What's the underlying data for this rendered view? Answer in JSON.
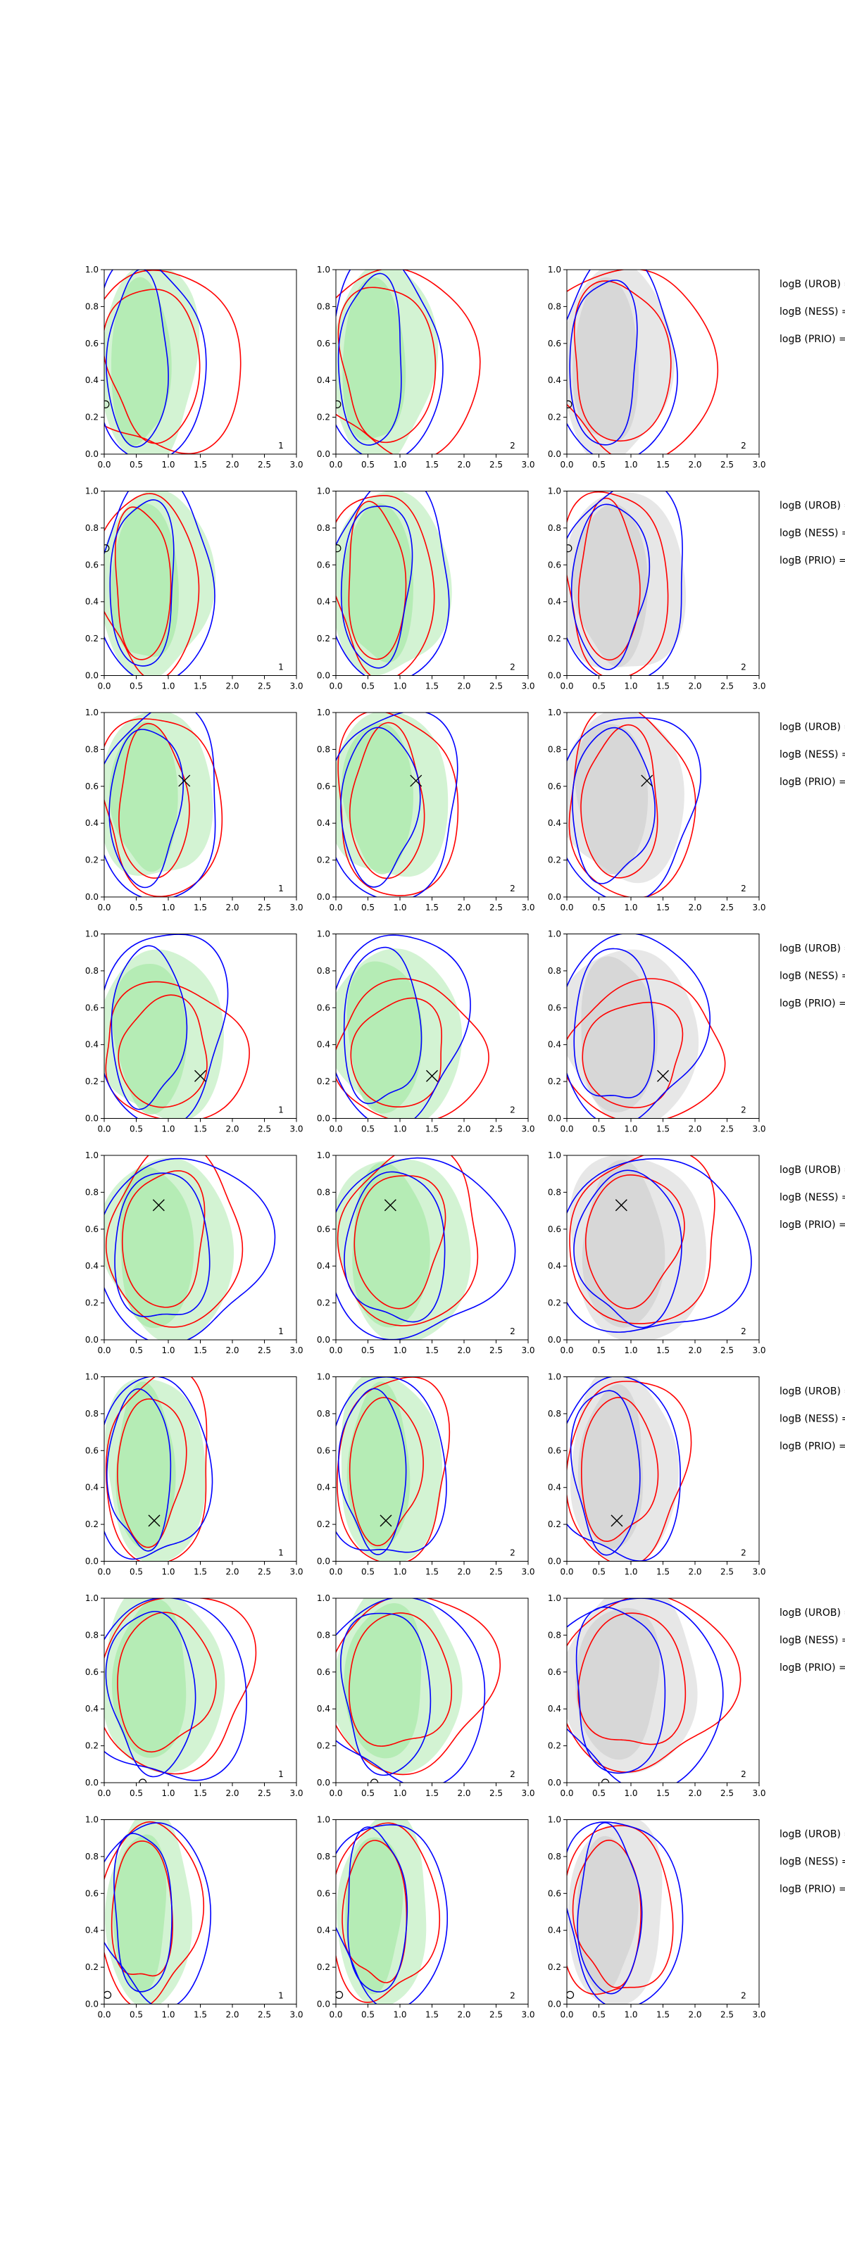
{
  "chart_data": {
    "type": "contour",
    "title": "",
    "grid": false,
    "layout": {
      "rows": 8,
      "cols": 3
    },
    "xlim": [
      0.0,
      3.0
    ],
    "ylim": [
      0.0,
      1.0
    ],
    "x_ticks": [
      "0.0",
      "0.5",
      "1.0",
      "1.5",
      "2.0",
      "2.5",
      "3.0"
    ],
    "y_ticks": [
      "0.0",
      "0.2",
      "0.4",
      "0.6",
      "0.8",
      "1.0"
    ],
    "colors": {
      "fill_col1": "#aeeaae",
      "fill_col2": "#aeeaae",
      "fill_col3": "#d3d3d3",
      "contour_red": "#ff0000",
      "contour_blue": "#0000ff"
    },
    "corner_labels": [
      "1",
      "2",
      "2"
    ],
    "row_side_labels": [
      "logB (UROB) =",
      "logB (NESS) =",
      "logB (PRIO) ="
    ],
    "rows": [
      {
        "marker": {
          "x": 0.02,
          "y": 0.27,
          "type": "circle-edge"
        }
      },
      {
        "marker": {
          "x": 0.02,
          "y": 0.69,
          "type": "circle-edge"
        }
      },
      {
        "marker": {
          "x": 1.25,
          "y": 0.63,
          "type": "x"
        }
      },
      {
        "marker": {
          "x": 1.5,
          "y": 0.23,
          "type": "x"
        }
      },
      {
        "marker": {
          "x": 0.85,
          "y": 0.73,
          "type": "x"
        }
      },
      {
        "marker": {
          "x": 0.78,
          "y": 0.22,
          "type": "x"
        }
      },
      {
        "marker": {
          "x": 0.6,
          "y": 0.0,
          "type": "circle-edge"
        }
      },
      {
        "marker": {
          "x": 0.05,
          "y": 0.05,
          "type": "circle-edge"
        }
      }
    ]
  }
}
